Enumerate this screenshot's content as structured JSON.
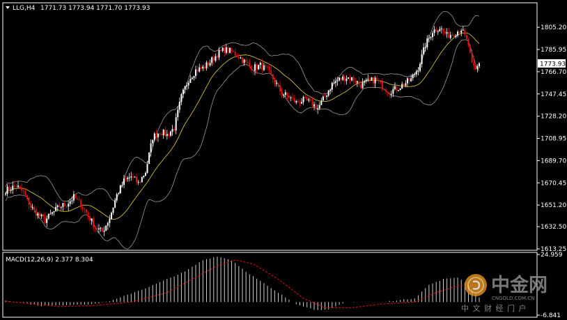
{
  "header": {
    "symbol": "LLG,H4",
    "ohlc": "1771.73 1773.94 1771.70 1773.93"
  },
  "indicator": {
    "label": "MACD(12,26,9) 2.377 8.304"
  },
  "watermark": {
    "brand_cn": "中金网",
    "site": "CNGOLD.COM.CN",
    "tagline_cn": "中 文 财 经 门 户"
  },
  "colors": {
    "background": "#000000",
    "frame": "#ffffff",
    "bull_candle": "#ffffff",
    "bear_candle": "#e01010",
    "ma_line": "#e6d23a",
    "band_line": "#9a9a9a",
    "macd_signal": "#e01010",
    "macd_hist": "#cfcfcf",
    "price_tag_bg": "#ffffff",
    "price_tag_text": "#000000"
  },
  "chart_data": [
    {
      "type": "candlestick",
      "title": "LLG,H4",
      "overlays": [
        "moving-average",
        "bollinger-bands"
      ],
      "ylim": [
        1613.25,
        1824.0
      ],
      "yticks": [
        1805.2,
        1785.95,
        1766.7,
        1747.45,
        1728.2,
        1708.95,
        1689.7,
        1670.45,
        1651.2,
        1632.5,
        1613.25
      ],
      "last_price": 1773.93,
      "grid": false,
      "anchors": [
        [
          0,
          1664
        ],
        [
          6,
          1668
        ],
        [
          10,
          1662
        ],
        [
          14,
          1650
        ],
        [
          18,
          1643
        ],
        [
          22,
          1638
        ],
        [
          26,
          1644
        ],
        [
          30,
          1650
        ],
        [
          34,
          1652
        ],
        [
          38,
          1658
        ],
        [
          42,
          1652
        ],
        [
          46,
          1642
        ],
        [
          50,
          1632
        ],
        [
          54,
          1628
        ],
        [
          58,
          1640
        ],
        [
          62,
          1660
        ],
        [
          66,
          1672
        ],
        [
          70,
          1676
        ],
        [
          74,
          1670
        ],
        [
          78,
          1680
        ],
        [
          82,
          1710
        ],
        [
          86,
          1715
        ],
        [
          90,
          1712
        ],
        [
          94,
          1718
        ],
        [
          98,
          1745
        ],
        [
          102,
          1760
        ],
        [
          106,
          1768
        ],
        [
          110,
          1770
        ],
        [
          114,
          1775
        ],
        [
          118,
          1782
        ],
        [
          122,
          1786
        ],
        [
          126,
          1784
        ],
        [
          130,
          1780
        ],
        [
          134,
          1774
        ],
        [
          138,
          1770
        ],
        [
          142,
          1772
        ],
        [
          146,
          1768
        ],
        [
          150,
          1758
        ],
        [
          154,
          1748
        ],
        [
          158,
          1745
        ],
        [
          162,
          1740
        ],
        [
          166,
          1742
        ],
        [
          170,
          1740
        ],
        [
          174,
          1735
        ],
        [
          178,
          1745
        ],
        [
          182,
          1756
        ],
        [
          186,
          1760
        ],
        [
          190,
          1762
        ],
        [
          194,
          1760
        ],
        [
          198,
          1755
        ],
        [
          202,
          1758
        ],
        [
          206,
          1760
        ],
        [
          210,
          1754
        ],
        [
          214,
          1750
        ],
        [
          218,
          1752
        ],
        [
          222,
          1756
        ],
        [
          226,
          1760
        ],
        [
          230,
          1770
        ],
        [
          234,
          1790
        ],
        [
          238,
          1802
        ],
        [
          242,
          1805
        ],
        [
          246,
          1798
        ],
        [
          250,
          1800
        ],
        [
          254,
          1804
        ],
        [
          258,
          1790
        ],
        [
          260,
          1772
        ],
        [
          262,
          1768
        ],
        [
          264,
          1774
        ]
      ]
    },
    {
      "type": "macd",
      "title": "MACD(12,26,9)",
      "ylim": [
        -6.841,
        24.959
      ],
      "yticks": [
        24.959,
        -6.841
      ],
      "macd_anchors": [
        [
          0,
          0.8
        ],
        [
          20,
          -2.0
        ],
        [
          50,
          -1.0
        ],
        [
          60,
          1.0
        ],
        [
          80,
          8
        ],
        [
          100,
          16
        ],
        [
          110,
          22
        ],
        [
          118,
          24
        ],
        [
          126,
          22
        ],
        [
          134,
          16
        ],
        [
          150,
          6
        ],
        [
          162,
          -1
        ],
        [
          172,
          -4
        ],
        [
          180,
          -4
        ],
        [
          190,
          0
        ],
        [
          210,
          0
        ],
        [
          228,
          2
        ],
        [
          236,
          9
        ],
        [
          244,
          12
        ],
        [
          252,
          13
        ],
        [
          258,
          9
        ],
        [
          264,
          2.377
        ]
      ],
      "signal_anchors": [
        [
          0,
          0.5
        ],
        [
          30,
          -2.4
        ],
        [
          50,
          -1.8
        ],
        [
          70,
          0
        ],
        [
          90,
          5
        ],
        [
          106,
          13
        ],
        [
          118,
          19
        ],
        [
          128,
          22
        ],
        [
          138,
          20
        ],
        [
          152,
          12
        ],
        [
          166,
          2
        ],
        [
          178,
          -3
        ],
        [
          192,
          -3
        ],
        [
          210,
          -1
        ],
        [
          228,
          0
        ],
        [
          240,
          5
        ],
        [
          254,
          9
        ],
        [
          264,
          8.304
        ]
      ]
    }
  ]
}
